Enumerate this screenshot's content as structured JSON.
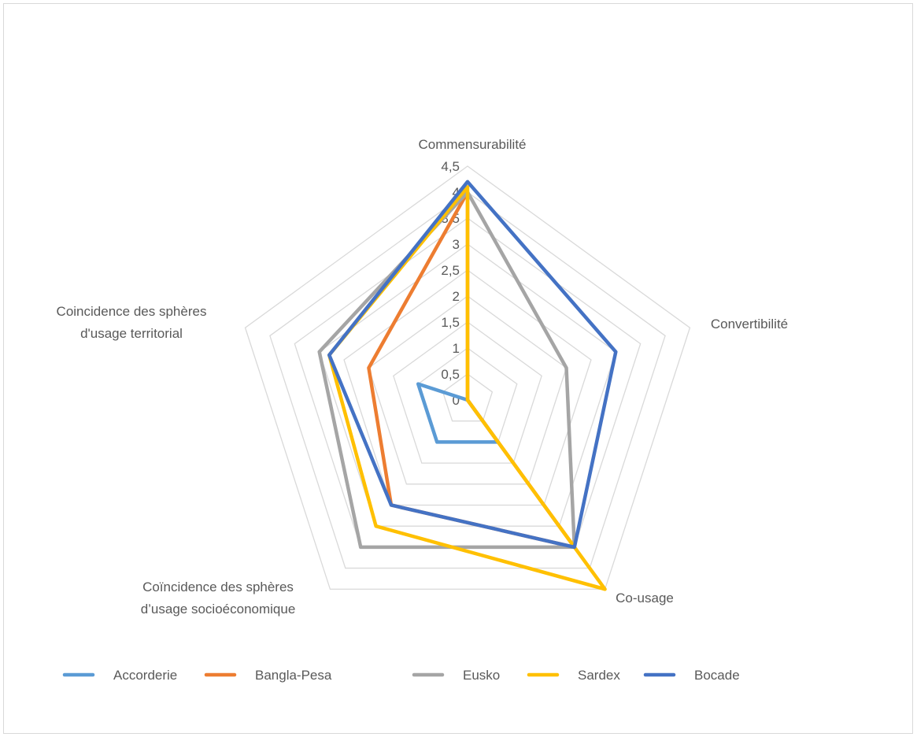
{
  "chart_data": {
    "type": "radar",
    "axes": [
      "Commensurabilité",
      "Convertibilité",
      "Co-usage",
      "Coïncidence des sphères d’usage socioéconomique",
      "Coincidence des sphères d'usage territorial"
    ],
    "axis_label_lines": [
      [
        "Commensurabilité"
      ],
      [
        "Convertibilité"
      ],
      [
        "Co-usage"
      ],
      [
        "Coïncidence des sphères",
        "d’usage socioéconomique"
      ],
      [
        "Coincidence des sphères",
        "d'usage territorial"
      ]
    ],
    "tick_labels": [
      "0",
      "0,5",
      "1",
      "1,5",
      "2",
      "2,5",
      "3",
      "3,5",
      "4",
      "4,5"
    ],
    "range": [
      0,
      4.5
    ],
    "grid": true,
    "legend_position": "bottom",
    "series": [
      {
        "name": "Accorderie",
        "color": "#5B9BD5",
        "values": [
          0,
          0,
          1,
          1,
          1
        ]
      },
      {
        "name": "Bangla-Pesa",
        "color": "#ED7D31",
        "values": [
          4,
          0,
          3.5,
          2.5,
          2
        ]
      },
      {
        "name": "Eusko",
        "color": "#A5A5A5",
        "values": [
          4,
          2,
          3.5,
          3.5,
          3
        ]
      },
      {
        "name": "Sardex",
        "color": "#FFC000",
        "values": [
          4.1,
          0,
          4.5,
          3,
          2.8
        ]
      },
      {
        "name": "Bocade",
        "color": "#4472C4",
        "values": [
          4.2,
          3,
          3.5,
          2.5,
          2.8
        ]
      }
    ]
  }
}
